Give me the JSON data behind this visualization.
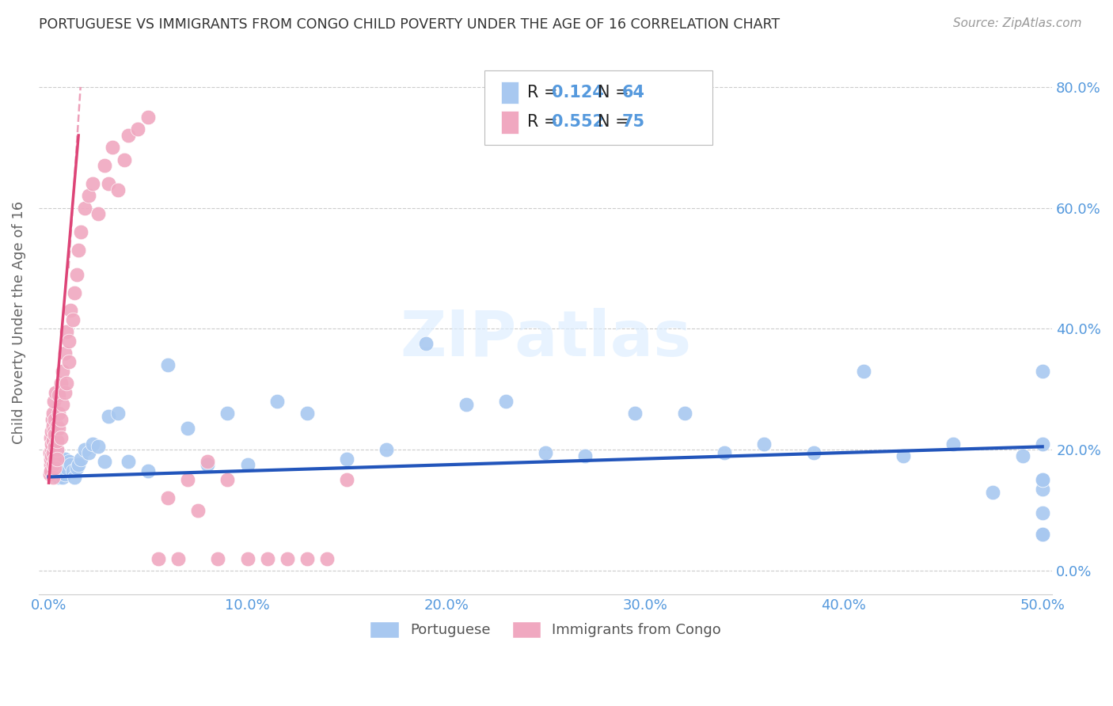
{
  "title": "PORTUGUESE VS IMMIGRANTS FROM CONGO CHILD POVERTY UNDER THE AGE OF 16 CORRELATION CHART",
  "source": "Source: ZipAtlas.com",
  "ylabel": "Child Poverty Under the Age of 16",
  "xlabel_ticks": [
    "0.0%",
    "10.0%",
    "20.0%",
    "30.0%",
    "40.0%",
    "50.0%"
  ],
  "xlabel_vals": [
    0.0,
    0.1,
    0.2,
    0.3,
    0.4,
    0.5
  ],
  "ylabel_ticks": [
    "0.0%",
    "20.0%",
    "40.0%",
    "60.0%",
    "80.0%"
  ],
  "ylabel_vals": [
    0.0,
    0.2,
    0.4,
    0.6,
    0.8
  ],
  "xlim": [
    -0.005,
    0.505
  ],
  "ylim": [
    -0.04,
    0.86
  ],
  "blue_color": "#a8c8f0",
  "pink_color": "#f0a8c0",
  "blue_line_color": "#2255bb",
  "pink_line_color": "#dd4477",
  "axis_label_color": "#5599dd",
  "R_blue": 0.124,
  "N_blue": 64,
  "R_pink": 0.552,
  "N_pink": 75,
  "portuguese_x": [
    0.001,
    0.002,
    0.002,
    0.003,
    0.003,
    0.004,
    0.004,
    0.005,
    0.005,
    0.006,
    0.006,
    0.007,
    0.007,
    0.008,
    0.008,
    0.009,
    0.01,
    0.011,
    0.012,
    0.013,
    0.014,
    0.015,
    0.016,
    0.018,
    0.02,
    0.022,
    0.025,
    0.028,
    0.03,
    0.035,
    0.04,
    0.05,
    0.06,
    0.07,
    0.08,
    0.09,
    0.1,
    0.115,
    0.13,
    0.15,
    0.17,
    0.19,
    0.21,
    0.23,
    0.25,
    0.27,
    0.295,
    0.32,
    0.34,
    0.36,
    0.385,
    0.41,
    0.43,
    0.455,
    0.475,
    0.49,
    0.5,
    0.5,
    0.5,
    0.5,
    0.5,
    0.5,
    0.5,
    0.5
  ],
  "portuguese_y": [
    0.19,
    0.175,
    0.2,
    0.185,
    0.16,
    0.17,
    0.195,
    0.155,
    0.18,
    0.165,
    0.185,
    0.155,
    0.175,
    0.16,
    0.185,
    0.17,
    0.18,
    0.175,
    0.165,
    0.155,
    0.17,
    0.175,
    0.185,
    0.2,
    0.195,
    0.21,
    0.205,
    0.18,
    0.255,
    0.26,
    0.18,
    0.165,
    0.34,
    0.235,
    0.175,
    0.26,
    0.175,
    0.28,
    0.26,
    0.185,
    0.2,
    0.375,
    0.275,
    0.28,
    0.195,
    0.19,
    0.26,
    0.26,
    0.195,
    0.21,
    0.195,
    0.33,
    0.19,
    0.21,
    0.13,
    0.19,
    0.135,
    0.21,
    0.095,
    0.06,
    0.33,
    0.15,
    0.15,
    0.06
  ],
  "congo_x": [
    0.0005,
    0.0005,
    0.0008,
    0.001,
    0.001,
    0.001,
    0.0012,
    0.0013,
    0.0015,
    0.0015,
    0.0018,
    0.002,
    0.002,
    0.002,
    0.002,
    0.002,
    0.0022,
    0.0025,
    0.0025,
    0.003,
    0.003,
    0.003,
    0.003,
    0.003,
    0.0035,
    0.004,
    0.004,
    0.004,
    0.004,
    0.005,
    0.005,
    0.005,
    0.006,
    0.006,
    0.006,
    0.007,
    0.007,
    0.008,
    0.008,
    0.009,
    0.009,
    0.01,
    0.01,
    0.011,
    0.012,
    0.013,
    0.014,
    0.015,
    0.016,
    0.018,
    0.02,
    0.022,
    0.025,
    0.028,
    0.03,
    0.032,
    0.035,
    0.038,
    0.04,
    0.045,
    0.05,
    0.055,
    0.06,
    0.065,
    0.07,
    0.075,
    0.08,
    0.085,
    0.09,
    0.1,
    0.11,
    0.12,
    0.13,
    0.14,
    0.15
  ],
  "congo_y": [
    0.195,
    0.16,
    0.175,
    0.22,
    0.185,
    0.165,
    0.2,
    0.23,
    0.21,
    0.19,
    0.25,
    0.175,
    0.195,
    0.215,
    0.24,
    0.155,
    0.26,
    0.28,
    0.23,
    0.185,
    0.205,
    0.225,
    0.25,
    0.17,
    0.295,
    0.2,
    0.24,
    0.215,
    0.185,
    0.235,
    0.26,
    0.29,
    0.25,
    0.31,
    0.22,
    0.275,
    0.33,
    0.295,
    0.36,
    0.31,
    0.395,
    0.345,
    0.38,
    0.43,
    0.415,
    0.46,
    0.49,
    0.53,
    0.56,
    0.6,
    0.62,
    0.64,
    0.59,
    0.67,
    0.64,
    0.7,
    0.63,
    0.68,
    0.72,
    0.73,
    0.75,
    0.02,
    0.12,
    0.02,
    0.15,
    0.1,
    0.18,
    0.02,
    0.15,
    0.02,
    0.02,
    0.02,
    0.02,
    0.02,
    0.15
  ]
}
